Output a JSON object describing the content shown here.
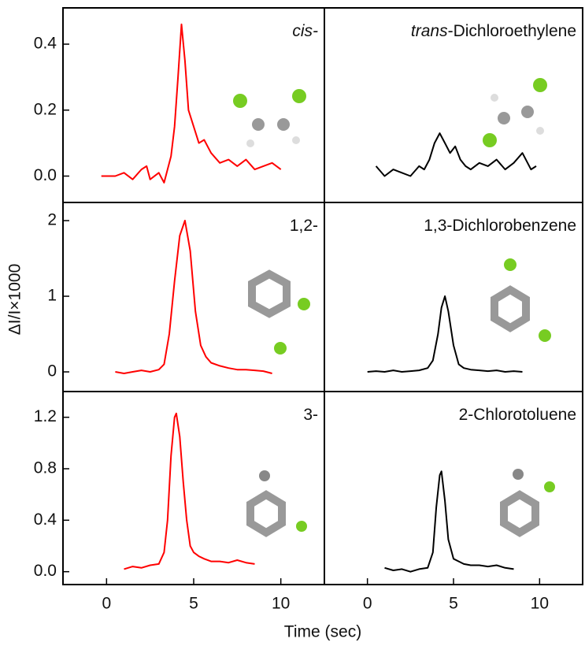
{
  "figure": {
    "xlabel": "Time (sec)",
    "ylabel": "ΔI/I×1000"
  },
  "chart_data": [
    {
      "type": "line",
      "title_parts": [
        {
          "text": "cis-",
          "italic": true
        }
      ],
      "color": "#ff0000",
      "xlim": [
        -2.5,
        12.5
      ],
      "ylim": [
        -0.08,
        0.51
      ],
      "yticks": [
        {
          "value": 0,
          "label": "0.0"
        },
        0.2,
        0.4
      ],
      "x": [
        -0.3,
        0.5,
        1,
        1.5,
        2,
        2.3,
        2.5,
        3,
        3.3,
        3.5,
        3.7,
        3.9,
        4.1,
        4.3,
        4.5,
        4.7,
        5,
        5.3,
        5.6,
        6,
        6.5,
        7,
        7.5,
        8,
        8.5,
        9,
        9.5,
        10
      ],
      "values": [
        0,
        0,
        0.01,
        -0.01,
        0.02,
        0.03,
        -0.01,
        0.01,
        -0.02,
        0.02,
        0.06,
        0.15,
        0.3,
        0.46,
        0.35,
        0.2,
        0.15,
        0.1,
        0.11,
        0.07,
        0.04,
        0.05,
        0.03,
        0.05,
        0.02,
        0.03,
        0.04,
        0.02
      ]
    },
    {
      "type": "line",
      "title_parts": [
        {
          "text": "trans",
          "italic": true
        },
        {
          "text": "-Dichloroethylene",
          "italic": false
        }
      ],
      "color": "#000000",
      "xlim": [
        -2.5,
        12.5
      ],
      "ylim": [
        -0.08,
        0.51
      ],
      "x": [
        0.5,
        1,
        1.5,
        2,
        2.5,
        3,
        3.3,
        3.6,
        3.9,
        4.2,
        4.5,
        4.8,
        5.1,
        5.4,
        5.7,
        6,
        6.5,
        7,
        7.5,
        8,
        8.5,
        9,
        9.5,
        9.8
      ],
      "values": [
        0.03,
        0,
        0.02,
        0.01,
        0,
        0.03,
        0.02,
        0.05,
        0.1,
        0.13,
        0.1,
        0.07,
        0.09,
        0.05,
        0.03,
        0.02,
        0.04,
        0.03,
        0.05,
        0.02,
        0.04,
        0.07,
        0.02,
        0.03
      ]
    },
    {
      "type": "line",
      "title_parts": [
        {
          "text": "1,2-",
          "italic": false
        }
      ],
      "color": "#ff0000",
      "xlim": [
        -2.5,
        12.5
      ],
      "ylim": [
        -0.26,
        2.24
      ],
      "yticks": [
        0,
        1,
        2
      ],
      "x": [
        0.5,
        1,
        1.5,
        2,
        2.5,
        3,
        3.3,
        3.6,
        3.9,
        4.2,
        4.5,
        4.8,
        5.1,
        5.4,
        5.7,
        6,
        6.5,
        7,
        7.5,
        8,
        8.5,
        9,
        9.5
      ],
      "values": [
        0,
        -0.02,
        0,
        0.02,
        0,
        0.03,
        0.1,
        0.5,
        1.2,
        1.8,
        2.0,
        1.6,
        0.8,
        0.35,
        0.2,
        0.12,
        0.08,
        0.05,
        0.03,
        0.03,
        0.02,
        0.01,
        -0.02
      ]
    },
    {
      "type": "line",
      "title_parts": [
        {
          "text": "1,3-Dichlorobenzene",
          "italic": false
        }
      ],
      "color": "#000000",
      "xlim": [
        -2.5,
        12.5
      ],
      "ylim": [
        -0.26,
        2.24
      ],
      "x": [
        0,
        0.5,
        1,
        1.5,
        2,
        2.5,
        3,
        3.5,
        3.8,
        4.1,
        4.3,
        4.5,
        4.7,
        5,
        5.3,
        5.6,
        6,
        6.5,
        7,
        7.5,
        8,
        8.5,
        9
      ],
      "values": [
        0,
        0.01,
        0,
        0.02,
        0,
        0.01,
        0.02,
        0.05,
        0.15,
        0.5,
        0.85,
        1.0,
        0.8,
        0.35,
        0.1,
        0.05,
        0.03,
        0.02,
        0.01,
        0.02,
        0,
        0.01,
        0
      ]
    },
    {
      "type": "line",
      "title_parts": [
        {
          "text": "3-",
          "italic": false
        }
      ],
      "color": "#ff0000",
      "xlim": [
        -2.5,
        12.5
      ],
      "ylim": [
        -0.1,
        1.4
      ],
      "yticks": [
        {
          "value": 0,
          "label": "0.0"
        },
        0.4,
        0.8,
        1.2
      ],
      "xticks": [
        0,
        5,
        10
      ],
      "x": [
        1,
        1.5,
        2,
        2.5,
        3,
        3.3,
        3.5,
        3.7,
        3.9,
        4.0,
        4.2,
        4.4,
        4.6,
        4.8,
        5,
        5.3,
        5.6,
        6,
        6.5,
        7,
        7.5,
        8,
        8.5
      ],
      "values": [
        0.02,
        0.04,
        0.03,
        0.05,
        0.06,
        0.15,
        0.4,
        0.9,
        1.2,
        1.23,
        1.05,
        0.7,
        0.4,
        0.2,
        0.15,
        0.12,
        0.1,
        0.08,
        0.08,
        0.07,
        0.09,
        0.07,
        0.06
      ]
    },
    {
      "type": "line",
      "title_parts": [
        {
          "text": "2-Chlorotoluene",
          "italic": false
        }
      ],
      "color": "#000000",
      "xlim": [
        -2.5,
        12.5
      ],
      "ylim": [
        -0.1,
        1.4
      ],
      "xticks": [
        0,
        5,
        10
      ],
      "x": [
        1,
        1.5,
        2,
        2.5,
        3,
        3.5,
        3.8,
        4,
        4.2,
        4.3,
        4.5,
        4.7,
        5,
        5.3,
        5.6,
        6,
        6.5,
        7,
        7.5,
        8,
        8.5
      ],
      "values": [
        0.03,
        0.01,
        0.02,
        0,
        0.02,
        0.03,
        0.15,
        0.5,
        0.75,
        0.78,
        0.55,
        0.25,
        0.1,
        0.08,
        0.06,
        0.05,
        0.05,
        0.04,
        0.05,
        0.03,
        0.02
      ]
    }
  ]
}
